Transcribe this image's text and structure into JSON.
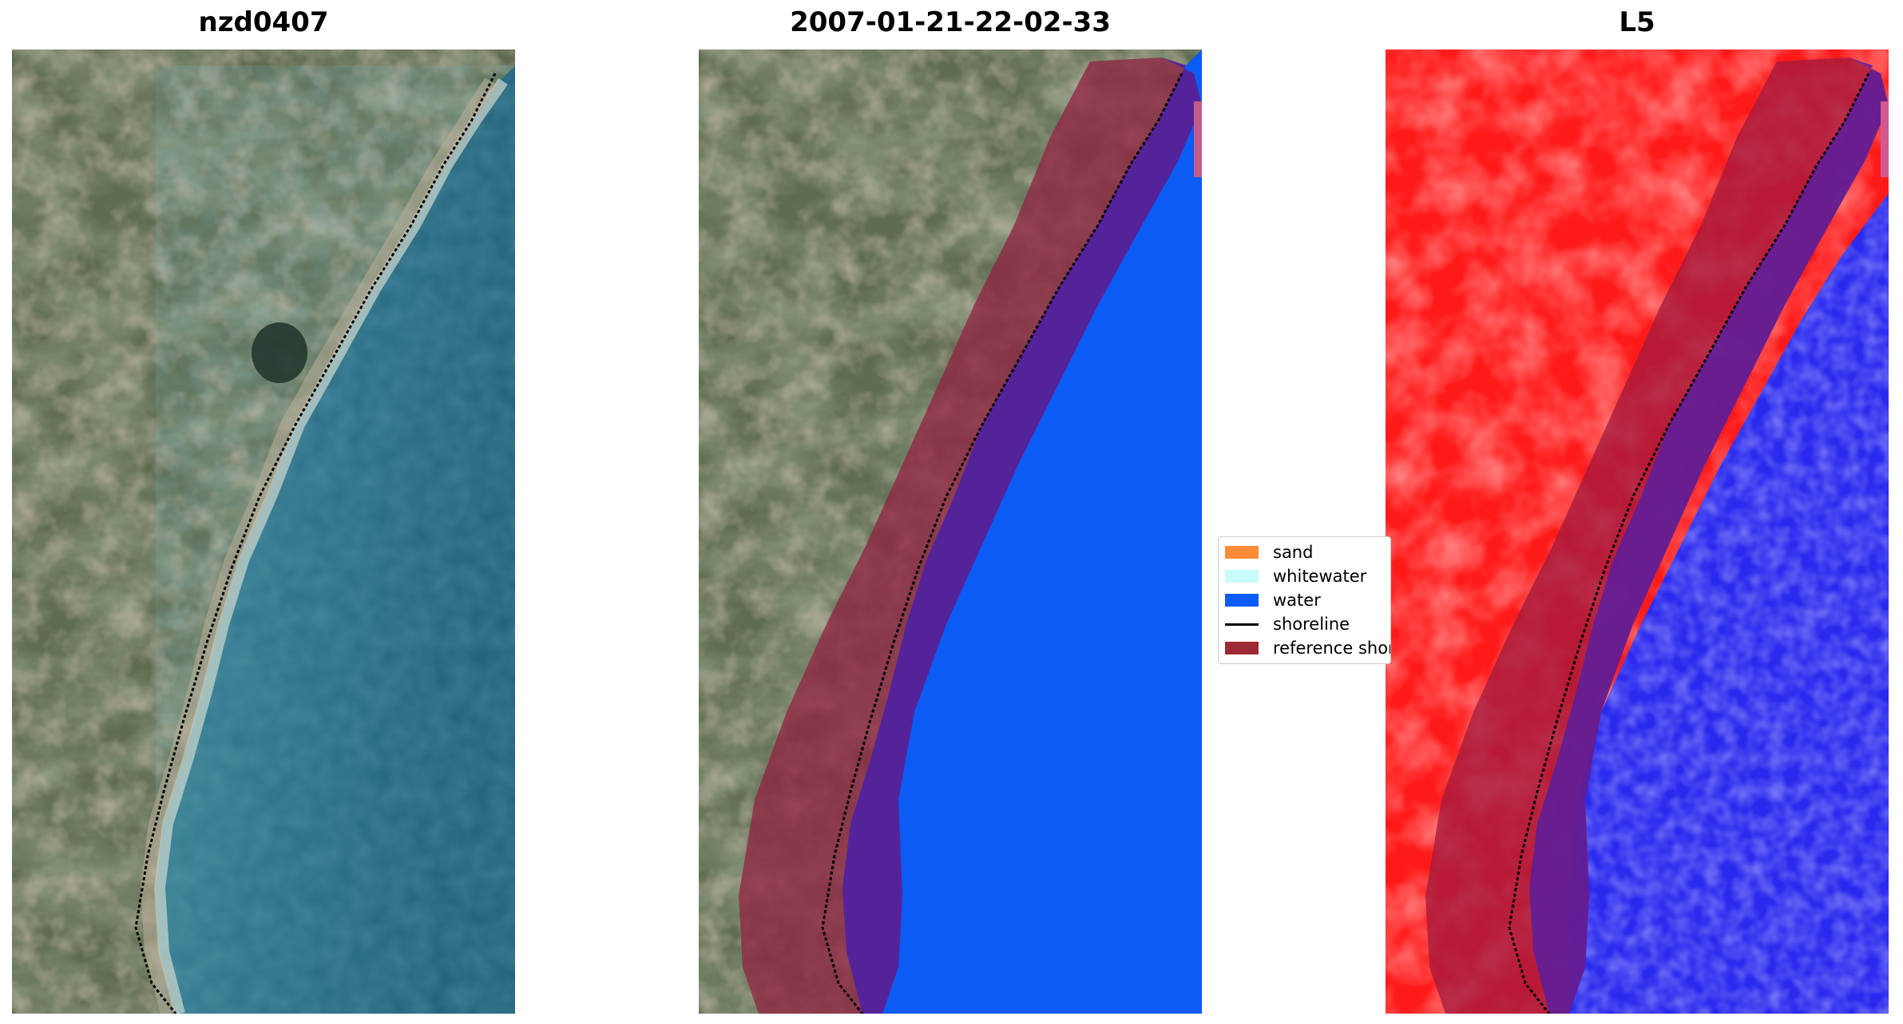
{
  "panels": [
    {
      "id": "rgb",
      "title": "nzd0407"
    },
    {
      "id": "classified",
      "title": "2007-01-21-22-02-33"
    },
    {
      "id": "index",
      "title": "L5"
    }
  ],
  "legend": {
    "items": [
      {
        "label": "sand",
        "color": "#ff8c3a",
        "kind": "patch"
      },
      {
        "label": "whitewater",
        "color": "#c8fbfb",
        "kind": "patch"
      },
      {
        "label": "water",
        "color": "#0a5cf5",
        "kind": "patch"
      },
      {
        "label": "shoreline",
        "color": "#000000",
        "kind": "line"
      },
      {
        "label": "reference shoreline buffer",
        "color": "#9b2a35",
        "kind": "patch"
      }
    ]
  },
  "colors": {
    "land_green": "#5d6e4e",
    "land_brown": "#8b7a63",
    "sea_teal": "#2f7187",
    "water_blue": "#0a5cf5",
    "buffer_maroon": "#8f2744",
    "buffer_purple": "#54239a",
    "index_red": "#ff1a1a",
    "index_blue": "#2a2aee"
  }
}
